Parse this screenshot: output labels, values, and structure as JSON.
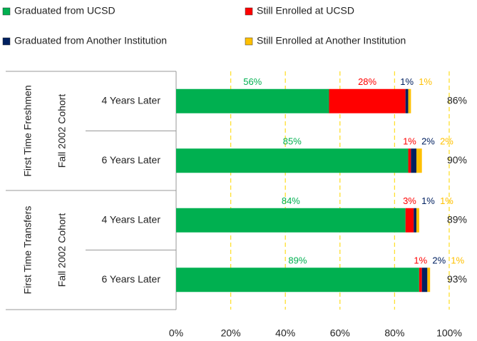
{
  "chart_data": {
    "type": "stacked_bar_horizontal",
    "groups": [
      {
        "label": "First Time Freshmen",
        "sublabel": "Fall 2002 Cohort"
      },
      {
        "label": "First Time Transfers",
        "sublabel": "Fall 2002 Cohort"
      }
    ],
    "categories": [
      "4 Years Later",
      "6 Years Later",
      "4 Years Later",
      "6 Years Later"
    ],
    "series": [
      {
        "name": "Graduated from UCSD",
        "color": "#00b050",
        "values": [
          56,
          85,
          84,
          89
        ],
        "value_labels": [
          "56%",
          "85%",
          "84%",
          "89%"
        ]
      },
      {
        "name": "Still Enrolled at UCSD",
        "color": "#ff0000",
        "values": [
          28,
          1,
          3,
          1
        ],
        "value_labels": [
          "28%",
          "1%",
          "3%",
          "1%"
        ]
      },
      {
        "name": "Graduated from Another Institution",
        "color": "#002060",
        "values": [
          1,
          2,
          1,
          2
        ],
        "value_labels": [
          "1%",
          "2%",
          "1%",
          "2%"
        ]
      },
      {
        "name": "Still Enrolled at Another Institution",
        "color": "#ffc000",
        "values": [
          1,
          2,
          1,
          1
        ],
        "value_labels": [
          "1%",
          "2%",
          "1%",
          "1%"
        ]
      }
    ],
    "totals": [
      86,
      90,
      89,
      93
    ],
    "total_labels": [
      "86%",
      "90%",
      "89%",
      "93%"
    ],
    "xlim": [
      0,
      100
    ],
    "xticks": [
      {
        "value": 0,
        "label": "0%"
      },
      {
        "value": 20,
        "label": "20%"
      },
      {
        "value": 40,
        "label": "40%"
      },
      {
        "value": 60,
        "label": "60%"
      },
      {
        "value": 80,
        "label": "80%"
      },
      {
        "value": 100,
        "label": "100%"
      }
    ],
    "grid": true,
    "legend": "top"
  }
}
